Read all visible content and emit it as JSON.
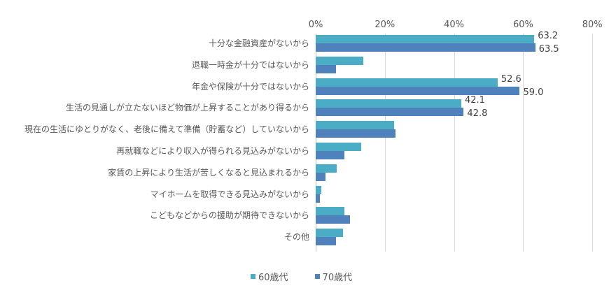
{
  "chart_data": {
    "type": "bar",
    "orientation": "horizontal",
    "title": "",
    "xlabel": "",
    "ylabel": "",
    "xlim": [
      0,
      80
    ],
    "x_ticks": [
      "0%",
      "20%",
      "40%",
      "60%",
      "80%"
    ],
    "grid": true,
    "legend_position": "bottom",
    "categories": [
      "十分な金融資産がないから",
      "退職一時金が十分ではないから",
      "年金や保険が十分ではないから",
      "生活の見通しが立たないほど物価が上昇することがあり得るから",
      "現在の生活にゆとりがなく、老後に備えて準備（貯蓄など）していないから",
      "再就職などにより収入が得られる見込みがないから",
      "家賃の上昇により生活が苦しくなると見込まれるから",
      "マイホームを取得できる見込みがないから",
      "こどもなどからの援助が期待できないから",
      "その他"
    ],
    "series": [
      {
        "name": "60歳代",
        "color": "#4BACC6",
        "values": [
          63.2,
          13.7,
          52.6,
          42.1,
          22.6,
          13.1,
          6.1,
          1.7,
          8.3,
          7.8
        ]
      },
      {
        "name": "70歳代",
        "color": "#4F81BD",
        "values": [
          63.5,
          5.9,
          59.0,
          42.8,
          23.0,
          8.3,
          2.9,
          1.2,
          9.9,
          5.8
        ]
      }
    ],
    "data_labels": [
      {
        "category_index": 0,
        "series": "60歳代",
        "text": "63.2"
      },
      {
        "category_index": 0,
        "series": "70歳代",
        "text": "63.5"
      },
      {
        "category_index": 2,
        "series": "60歳代",
        "text": "52.6"
      },
      {
        "category_index": 2,
        "series": "70歳代",
        "text": "59.0"
      },
      {
        "category_index": 3,
        "series": "60歳代",
        "text": "42.1"
      },
      {
        "category_index": 3,
        "series": "70歳代",
        "text": "42.8"
      }
    ]
  }
}
